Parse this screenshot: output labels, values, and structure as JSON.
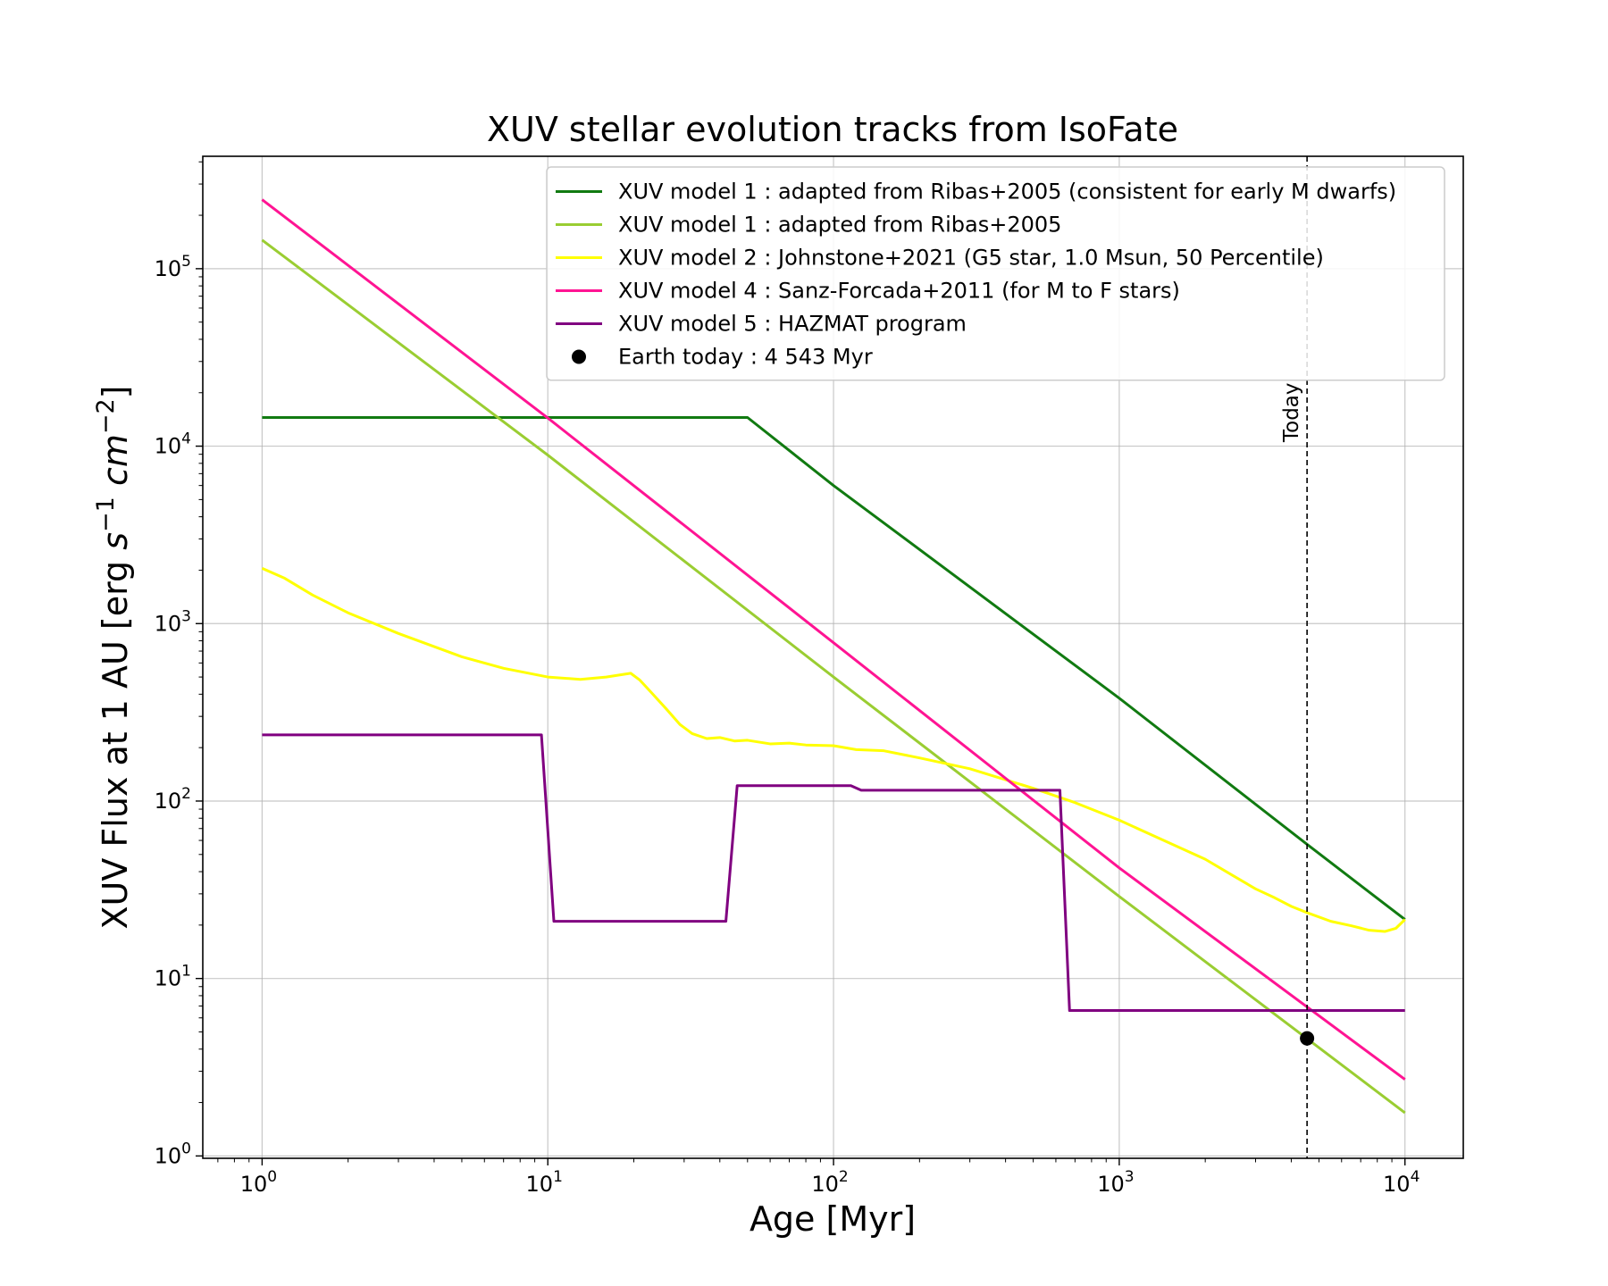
{
  "chart_data": {
    "type": "line",
    "title": "XUV stellar evolution tracks from IsoFate",
    "xlabel": "Age [Myr]",
    "ylabel": "XUV Flux at 1 AU [erg s^-1 cm^-2]",
    "ylabel_parts": [
      "XUV Flux at 1 AU [erg ",
      "s",
      "−1",
      " ",
      "cm",
      "−2",
      "]"
    ],
    "x_scale": "log",
    "y_scale": "log",
    "xlim": [
      0.62,
      16000
    ],
    "ylim": [
      0.97,
      430000
    ],
    "grid": true,
    "legend_position": "top-right",
    "x_ticks": [
      {
        "value": 1,
        "base": "10",
        "exp": "0"
      },
      {
        "value": 10,
        "base": "10",
        "exp": "1"
      },
      {
        "value": 100,
        "base": "10",
        "exp": "2"
      },
      {
        "value": 1000,
        "base": "10",
        "exp": "3"
      },
      {
        "value": 10000,
        "base": "10",
        "exp": "4"
      }
    ],
    "y_ticks": [
      {
        "value": 1,
        "base": "10",
        "exp": "0"
      },
      {
        "value": 10,
        "base": "10",
        "exp": "1"
      },
      {
        "value": 100,
        "base": "10",
        "exp": "2"
      },
      {
        "value": 1000,
        "base": "10",
        "exp": "3"
      },
      {
        "value": 10000,
        "base": "10",
        "exp": "4"
      },
      {
        "value": 100000,
        "base": "10",
        "exp": "5"
      }
    ],
    "series": [
      {
        "name": "XUV model 1 : adapted from Ribas+2005 (consistent for early M dwarfs)",
        "color": "#117a11",
        "points": [
          [
            1,
            14500
          ],
          [
            50,
            14500
          ],
          [
            100,
            6000
          ],
          [
            1000,
            380
          ],
          [
            4543,
            57
          ],
          [
            10000,
            21.5
          ]
        ]
      },
      {
        "name": "XUV model 1 : adapted from Ribas+2005",
        "color": "#9acd32",
        "points": [
          [
            1,
            145000
          ],
          [
            10,
            8900
          ],
          [
            100,
            500
          ],
          [
            1000,
            29
          ],
          [
            10000,
            1.75
          ]
        ]
      },
      {
        "name": "XUV model 2 : Johnstone+2021 (G5 star, 1.0 Msun, 50 Percentile)",
        "color": "#ffff00",
        "points": [
          [
            1,
            2050
          ],
          [
            1.2,
            1800
          ],
          [
            1.5,
            1450
          ],
          [
            2,
            1150
          ],
          [
            3,
            880
          ],
          [
            5,
            650
          ],
          [
            7,
            560
          ],
          [
            10,
            500
          ],
          [
            13,
            485
          ],
          [
            16,
            500
          ],
          [
            19.5,
            525
          ],
          [
            21,
            480
          ],
          [
            23,
            410
          ],
          [
            26,
            330
          ],
          [
            29,
            270
          ],
          [
            32,
            240
          ],
          [
            36,
            225
          ],
          [
            40,
            228
          ],
          [
            45,
            218
          ],
          [
            50,
            220
          ],
          [
            60,
            210
          ],
          [
            70,
            212
          ],
          [
            80,
            207
          ],
          [
            100,
            205
          ],
          [
            120,
            195
          ],
          [
            150,
            192
          ],
          [
            200,
            175
          ],
          [
            300,
            152
          ],
          [
            500,
            118
          ],
          [
            700,
            98
          ],
          [
            1000,
            78
          ],
          [
            1500,
            58
          ],
          [
            2000,
            47
          ],
          [
            2500,
            38
          ],
          [
            3000,
            32
          ],
          [
            3500,
            28.5
          ],
          [
            4000,
            25.5
          ],
          [
            4543,
            23.5
          ],
          [
            5500,
            21
          ],
          [
            6500,
            19.8
          ],
          [
            7500,
            18.7
          ],
          [
            8500,
            18.4
          ],
          [
            9300,
            19.2
          ],
          [
            10000,
            21.5
          ]
        ]
      },
      {
        "name": "XUV model 4 : Sanz-Forcada+2011 (for M to F stars)",
        "color": "#ff1493",
        "points": [
          [
            1,
            245000
          ],
          [
            10,
            14400
          ],
          [
            100,
            780
          ],
          [
            1000,
            42
          ],
          [
            10000,
            2.7
          ]
        ]
      },
      {
        "name": "XUV model 5 : HAZMAT program",
        "color": "#800080",
        "points": [
          [
            1,
            236
          ],
          [
            9.5,
            236
          ],
          [
            10.5,
            21
          ],
          [
            42,
            21
          ],
          [
            46,
            122
          ],
          [
            115,
            122
          ],
          [
            125,
            115
          ],
          [
            620,
            115
          ],
          [
            670,
            6.6
          ],
          [
            10000,
            6.6
          ]
        ]
      }
    ],
    "markers": [
      {
        "name": "Earth today : 4 543 Myr",
        "color": "#000000",
        "x": 4543,
        "y": 4.6
      }
    ],
    "reference_line": {
      "x": 4543,
      "label": "Today",
      "style": "dashed",
      "color": "#000000"
    }
  }
}
